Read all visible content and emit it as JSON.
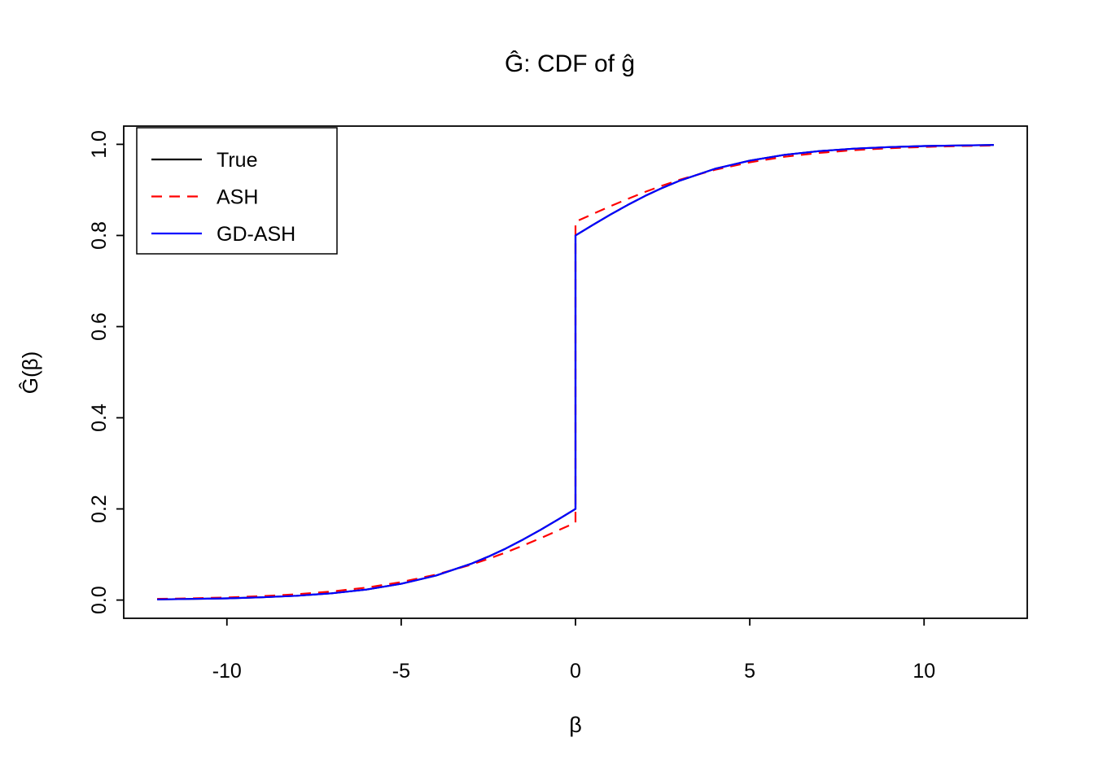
{
  "chart_data": {
    "type": "line",
    "title": "Ĝ: CDF of ĝ",
    "xlabel": "β",
    "ylabel": "Ĝ(β)",
    "xlim": [
      -12.96,
      12.96
    ],
    "ylim": [
      -0.04,
      1.04
    ],
    "x_ticks": [
      -10,
      -5,
      0,
      5,
      10
    ],
    "x_tick_labels": [
      "-10",
      "-5",
      "0",
      "5",
      "10"
    ],
    "y_ticks": [
      0.0,
      0.2,
      0.4,
      0.6,
      0.8,
      1.0
    ],
    "y_tick_labels": [
      "0.0",
      "0.2",
      "0.4",
      "0.6",
      "0.8",
      "1.0"
    ],
    "grid": false,
    "legend": {
      "position": "topleft"
    },
    "colors": {
      "true": "#000000",
      "ash": "#FF0000",
      "gd_ash": "#0000FF"
    },
    "series": [
      {
        "name": "True",
        "color": "#000000",
        "dash": "solid",
        "points": [
          [
            -12,
            0.0015
          ],
          [
            -11,
            0.0024
          ],
          [
            -10,
            0.0038
          ],
          [
            -9,
            0.006
          ],
          [
            -8,
            0.0095
          ],
          [
            -7,
            0.0148
          ],
          [
            -6,
            0.0231
          ],
          [
            -5,
            0.0356
          ],
          [
            -4,
            0.0539
          ],
          [
            -3,
            0.0794
          ],
          [
            -2.5,
            0.0953
          ],
          [
            -2,
            0.1132
          ],
          [
            -1.5,
            0.1329
          ],
          [
            -1,
            0.1543
          ],
          [
            -0.5,
            0.1768
          ],
          [
            0,
            0.2
          ],
          [
            0,
            0.8
          ],
          [
            0.5,
            0.8232
          ],
          [
            1,
            0.8457
          ],
          [
            1.5,
            0.8671
          ],
          [
            2,
            0.8868
          ],
          [
            2.5,
            0.9047
          ],
          [
            3,
            0.9206
          ],
          [
            4,
            0.9462
          ],
          [
            5,
            0.9644
          ],
          [
            6,
            0.9769
          ],
          [
            7,
            0.9852
          ],
          [
            8,
            0.9906
          ],
          [
            9,
            0.994
          ],
          [
            10,
            0.9962
          ],
          [
            11,
            0.9976
          ],
          [
            12,
            0.9985
          ]
        ]
      },
      {
        "name": "ASH",
        "color": "#FF0000",
        "dash": "dashed",
        "points": [
          [
            -12,
            0.0026
          ],
          [
            -11,
            0.0038
          ],
          [
            -10,
            0.0057
          ],
          [
            -9,
            0.0085
          ],
          [
            -8,
            0.0127
          ],
          [
            -7,
            0.0187
          ],
          [
            -6,
            0.0273
          ],
          [
            -5,
            0.0394
          ],
          [
            -4,
            0.0559
          ],
          [
            -3,
            0.0775
          ],
          [
            -2.5,
            0.0904
          ],
          [
            -2,
            0.1045
          ],
          [
            -1.5,
            0.1197
          ],
          [
            -1,
            0.1359
          ],
          [
            -0.5,
            0.1528
          ],
          [
            0,
            0.17
          ],
          [
            0,
            0.83
          ],
          [
            0.5,
            0.8472
          ],
          [
            1,
            0.8641
          ],
          [
            1.5,
            0.8803
          ],
          [
            2,
            0.8955
          ],
          [
            2.5,
            0.9097
          ],
          [
            3,
            0.9225
          ],
          [
            4,
            0.9441
          ],
          [
            5,
            0.9606
          ],
          [
            6,
            0.9727
          ],
          [
            7,
            0.9813
          ],
          [
            8,
            0.9873
          ],
          [
            9,
            0.9915
          ],
          [
            10,
            0.9943
          ],
          [
            11,
            0.9962
          ],
          [
            12,
            0.9974
          ]
        ]
      },
      {
        "name": "GD-ASH",
        "color": "#0000FF",
        "dash": "solid",
        "points": [
          [
            -12,
            0.0015
          ],
          [
            -11,
            0.0024
          ],
          [
            -10,
            0.0038
          ],
          [
            -9,
            0.006
          ],
          [
            -8,
            0.0095
          ],
          [
            -7,
            0.0148
          ],
          [
            -6,
            0.0231
          ],
          [
            -5,
            0.0356
          ],
          [
            -4,
            0.0539
          ],
          [
            -3,
            0.0794
          ],
          [
            -2.5,
            0.0953
          ],
          [
            -2,
            0.1132
          ],
          [
            -1.5,
            0.1329
          ],
          [
            -1,
            0.1543
          ],
          [
            -0.5,
            0.1768
          ],
          [
            0,
            0.2
          ],
          [
            0,
            0.8
          ],
          [
            0.5,
            0.8232
          ],
          [
            1,
            0.8457
          ],
          [
            1.5,
            0.8671
          ],
          [
            2,
            0.8868
          ],
          [
            2.5,
            0.9047
          ],
          [
            3,
            0.9206
          ],
          [
            4,
            0.9462
          ],
          [
            5,
            0.9644
          ],
          [
            6,
            0.9769
          ],
          [
            7,
            0.9852
          ],
          [
            8,
            0.9906
          ],
          [
            9,
            0.994
          ],
          [
            10,
            0.9962
          ],
          [
            11,
            0.9976
          ],
          [
            12,
            0.9985
          ]
        ]
      }
    ]
  }
}
